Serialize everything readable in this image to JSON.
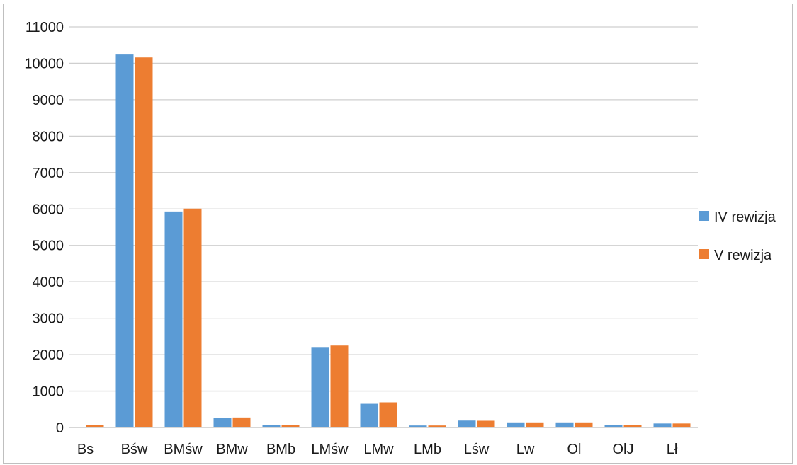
{
  "chart_data": {
    "type": "bar",
    "title": "",
    "xlabel": "",
    "ylabel": "",
    "categories": [
      "Bs",
      "Bśw",
      "BMśw",
      "BMw",
      "BMb",
      "LMśw",
      "LMw",
      "LMb",
      "Lśw",
      "Lw",
      "Ol",
      "OlJ",
      "Lł"
    ],
    "series": [
      {
        "name": "IV rewizja",
        "color": "#5b9bd5",
        "values": [
          0,
          10240,
          5930,
          270,
          70,
          2210,
          650,
          55,
          190,
          140,
          140,
          60,
          110
        ]
      },
      {
        "name": "V rewizja",
        "color": "#ed7d31",
        "values": [
          65,
          10160,
          6010,
          275,
          70,
          2250,
          690,
          55,
          185,
          140,
          140,
          60,
          110
        ]
      }
    ],
    "ylim": [
      0,
      11000
    ],
    "yticks": [
      "0",
      "1000",
      "2000",
      "3000",
      "4000",
      "5000",
      "6000",
      "7000",
      "8000",
      "9000",
      "10000",
      "11000"
    ],
    "grid": true,
    "legend_position": "right"
  }
}
